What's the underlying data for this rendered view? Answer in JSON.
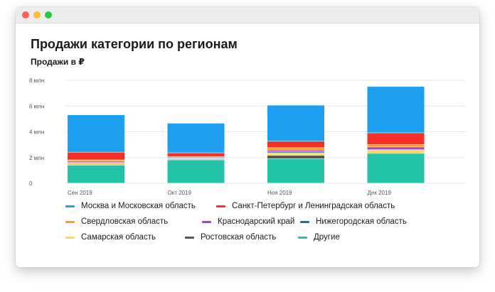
{
  "window": {
    "title": "Продажи категории по регионам"
  },
  "chart_data": {
    "type": "bar",
    "stacked": true,
    "title": "Продажи категории по регионам",
    "ylabel": "Продажи в ₽",
    "xlabel": "",
    "categories": [
      "Сен 2019",
      "Окт 2019",
      "Ноя 2019",
      "Дек 2019"
    ],
    "ylim": [
      0,
      8
    ],
    "yticks": [
      {
        "value": 0,
        "label": "0"
      },
      {
        "value": 2,
        "label": "2 млн"
      },
      {
        "value": 4,
        "label": "4 млн"
      },
      {
        "value": 6,
        "label": "6 млн"
      },
      {
        "value": 8,
        "label": "8 млн"
      }
    ],
    "grid": true,
    "legend_position": "bottom",
    "series": [
      {
        "name": "Другие",
        "color": "#22c3a6",
        "values": [
          1.4,
          1.8,
          1.9,
          2.3
        ]
      },
      {
        "name": "Ростовская область",
        "color": "#555555",
        "values": [
          0.05,
          0.05,
          0.25,
          0.05
        ]
      },
      {
        "name": "Самарская область",
        "color": "#ffd84d",
        "values": [
          0.1,
          0.05,
          0.2,
          0.2
        ]
      },
      {
        "name": "Нижегородская область",
        "color": "#1b6fa8",
        "values": [
          0.05,
          0.05,
          0.1,
          0.05
        ]
      },
      {
        "name": "Краснодарский край",
        "color": "#a93be0",
        "values": [
          0.1,
          0.05,
          0.1,
          0.2
        ]
      },
      {
        "name": "Свердловская область",
        "color": "#ff9e1b",
        "values": [
          0.1,
          0.05,
          0.2,
          0.2
        ]
      },
      {
        "name": "Санкт-Петербург и Ленинградская область",
        "color": "#f5302a",
        "values": [
          0.6,
          0.3,
          0.5,
          0.9
        ]
      },
      {
        "name": "Москва и Московская область",
        "color": "#1ea0f0",
        "values": [
          2.9,
          2.3,
          2.8,
          3.6
        ]
      }
    ],
    "legend_order": [
      "Москва и Московская область",
      "Санкт-Петербург и Ленинградская область",
      "Свердловская область",
      "Краснодарский край",
      "Нижегородская область",
      "Самарская область",
      "Ростовская область",
      "Другие"
    ]
  }
}
